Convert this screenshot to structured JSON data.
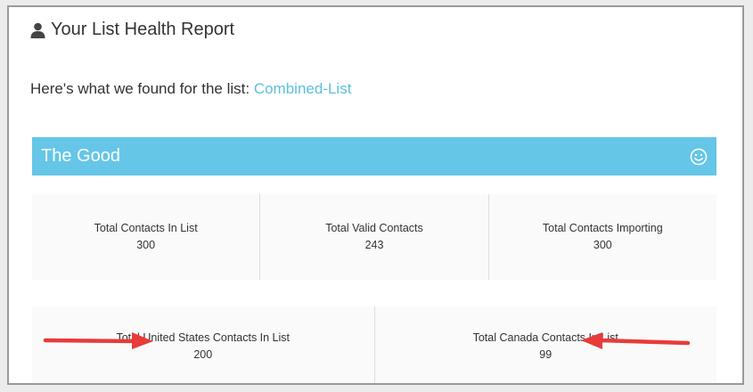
{
  "report": {
    "title": "Your List Health Report",
    "found_prefix": "Here's what we found for the list:",
    "list_name": "Combined-List"
  },
  "good_section": {
    "title": "The Good",
    "icon": "smiley-icon"
  },
  "stats_row1": [
    {
      "label": "Total Contacts In List",
      "value": "300"
    },
    {
      "label": "Total Valid Contacts",
      "value": "243"
    },
    {
      "label": "Total Contacts Importing",
      "value": "300"
    }
  ],
  "stats_row2": [
    {
      "label": "Total United States Contacts In List",
      "value": "200"
    },
    {
      "label": "Total Canada Contacts In List",
      "value": "99"
    }
  ],
  "colors": {
    "accent": "#65c6e8",
    "link": "#5bc0de",
    "arrow": "#e83b3b"
  }
}
